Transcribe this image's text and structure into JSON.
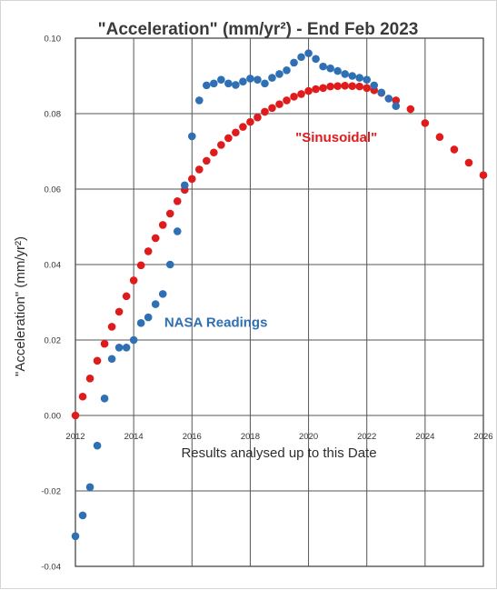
{
  "chart_data": {
    "type": "scatter",
    "title": "\"Acceleration\" (mm/yr²) - End Feb 2023",
    "xlabel": "Results analysed up to this Date",
    "ylabel": "\"Acceleration\" (mm/yr²)",
    "xlim": [
      2012,
      2026
    ],
    "ylim": [
      -0.04,
      0.1
    ],
    "x_ticks": [
      2012,
      2014,
      2016,
      2018,
      2020,
      2022,
      2024,
      2026
    ],
    "x_tick_labels": [
      "2012",
      "2014",
      "2016",
      "2018",
      "2020",
      "2022",
      "2024",
      "2026"
    ],
    "y_ticks": [
      -0.04,
      -0.02,
      0.0,
      0.02,
      0.04,
      0.06,
      0.08,
      0.1
    ],
    "y_tick_labels": [
      "-0.04",
      "-0.02",
      "0.00",
      "0.02",
      "0.04",
      "0.06",
      "0.08",
      "0.10"
    ],
    "grid": true,
    "annotations": [
      {
        "text": "\"Sinusoidal\"",
        "color": "#e01b1b",
        "x": 2019.55,
        "y": 0.0725
      },
      {
        "text": "NASA Readings",
        "color": "#2f6fb3",
        "x": 2015.05,
        "y": 0.0235
      }
    ],
    "series": [
      {
        "color": "#e01b1b",
        "x": [
          2012.0,
          2012.25,
          2012.5,
          2012.75,
          2013.0,
          2013.25,
          2013.5,
          2013.75,
          2014.0,
          2014.25,
          2014.5,
          2014.75,
          2015.0,
          2015.25,
          2015.5,
          2015.75,
          2016.0,
          2016.25,
          2016.5,
          2016.75,
          2017.0,
          2017.25,
          2017.5,
          2017.75,
          2018.0,
          2018.25,
          2018.5,
          2018.75,
          2019.0,
          2019.25,
          2019.5,
          2019.75,
          2020.0,
          2020.25,
          2020.5,
          2020.75,
          2021.0,
          2021.25,
          2021.5,
          2021.75,
          2022.0,
          2022.25,
          2022.5,
          2023.0,
          2023.5,
          2024.0,
          2024.5,
          2025.0,
          2025.5,
          2026.0
        ],
        "y": [
          0.0,
          0.005,
          0.0098,
          0.0145,
          0.019,
          0.0235,
          0.0275,
          0.0316,
          0.0358,
          0.0398,
          0.0435,
          0.047,
          0.0505,
          0.0535,
          0.0568,
          0.0598,
          0.0627,
          0.0652,
          0.0675,
          0.0697,
          0.0717,
          0.0735,
          0.075,
          0.0765,
          0.0778,
          0.079,
          0.0805,
          0.0815,
          0.0825,
          0.0835,
          0.0845,
          0.0852,
          0.086,
          0.0865,
          0.0868,
          0.0872,
          0.0873,
          0.0874,
          0.0873,
          0.0872,
          0.0868,
          0.0862,
          0.0855,
          0.0835,
          0.0812,
          0.0775,
          0.0738,
          0.0705,
          0.067,
          0.0637
        ]
      },
      {
        "color": "#2f6fb3",
        "x": [
          2012.0,
          2012.25,
          2012.5,
          2012.75,
          2013.0,
          2013.25,
          2013.5,
          2013.75,
          2014.0,
          2014.25,
          2014.5,
          2014.75,
          2015.0,
          2015.25,
          2015.5,
          2015.75,
          2016.0,
          2016.25,
          2016.5,
          2016.75,
          2017.0,
          2017.25,
          2017.5,
          2017.75,
          2018.0,
          2018.25,
          2018.5,
          2018.75,
          2019.0,
          2019.25,
          2019.5,
          2019.75,
          2020.0,
          2020.25,
          2020.5,
          2020.75,
          2021.0,
          2021.25,
          2021.5,
          2021.75,
          2022.0,
          2022.25,
          2022.5,
          2022.75,
          2023.0
        ],
        "y": [
          -0.032,
          -0.0265,
          -0.019,
          -0.008,
          0.0045,
          0.015,
          0.018,
          0.018,
          0.02,
          0.0245,
          0.026,
          0.0295,
          0.0322,
          0.04,
          0.0488,
          0.061,
          0.074,
          0.0835,
          0.0875,
          0.088,
          0.089,
          0.088,
          0.0876,
          0.0885,
          0.0893,
          0.089,
          0.088,
          0.0895,
          0.0905,
          0.0915,
          0.0935,
          0.095,
          0.096,
          0.0945,
          0.0925,
          0.092,
          0.0913,
          0.0905,
          0.09,
          0.0895,
          0.089,
          0.0875,
          0.0856,
          0.084,
          0.082
        ]
      }
    ]
  }
}
